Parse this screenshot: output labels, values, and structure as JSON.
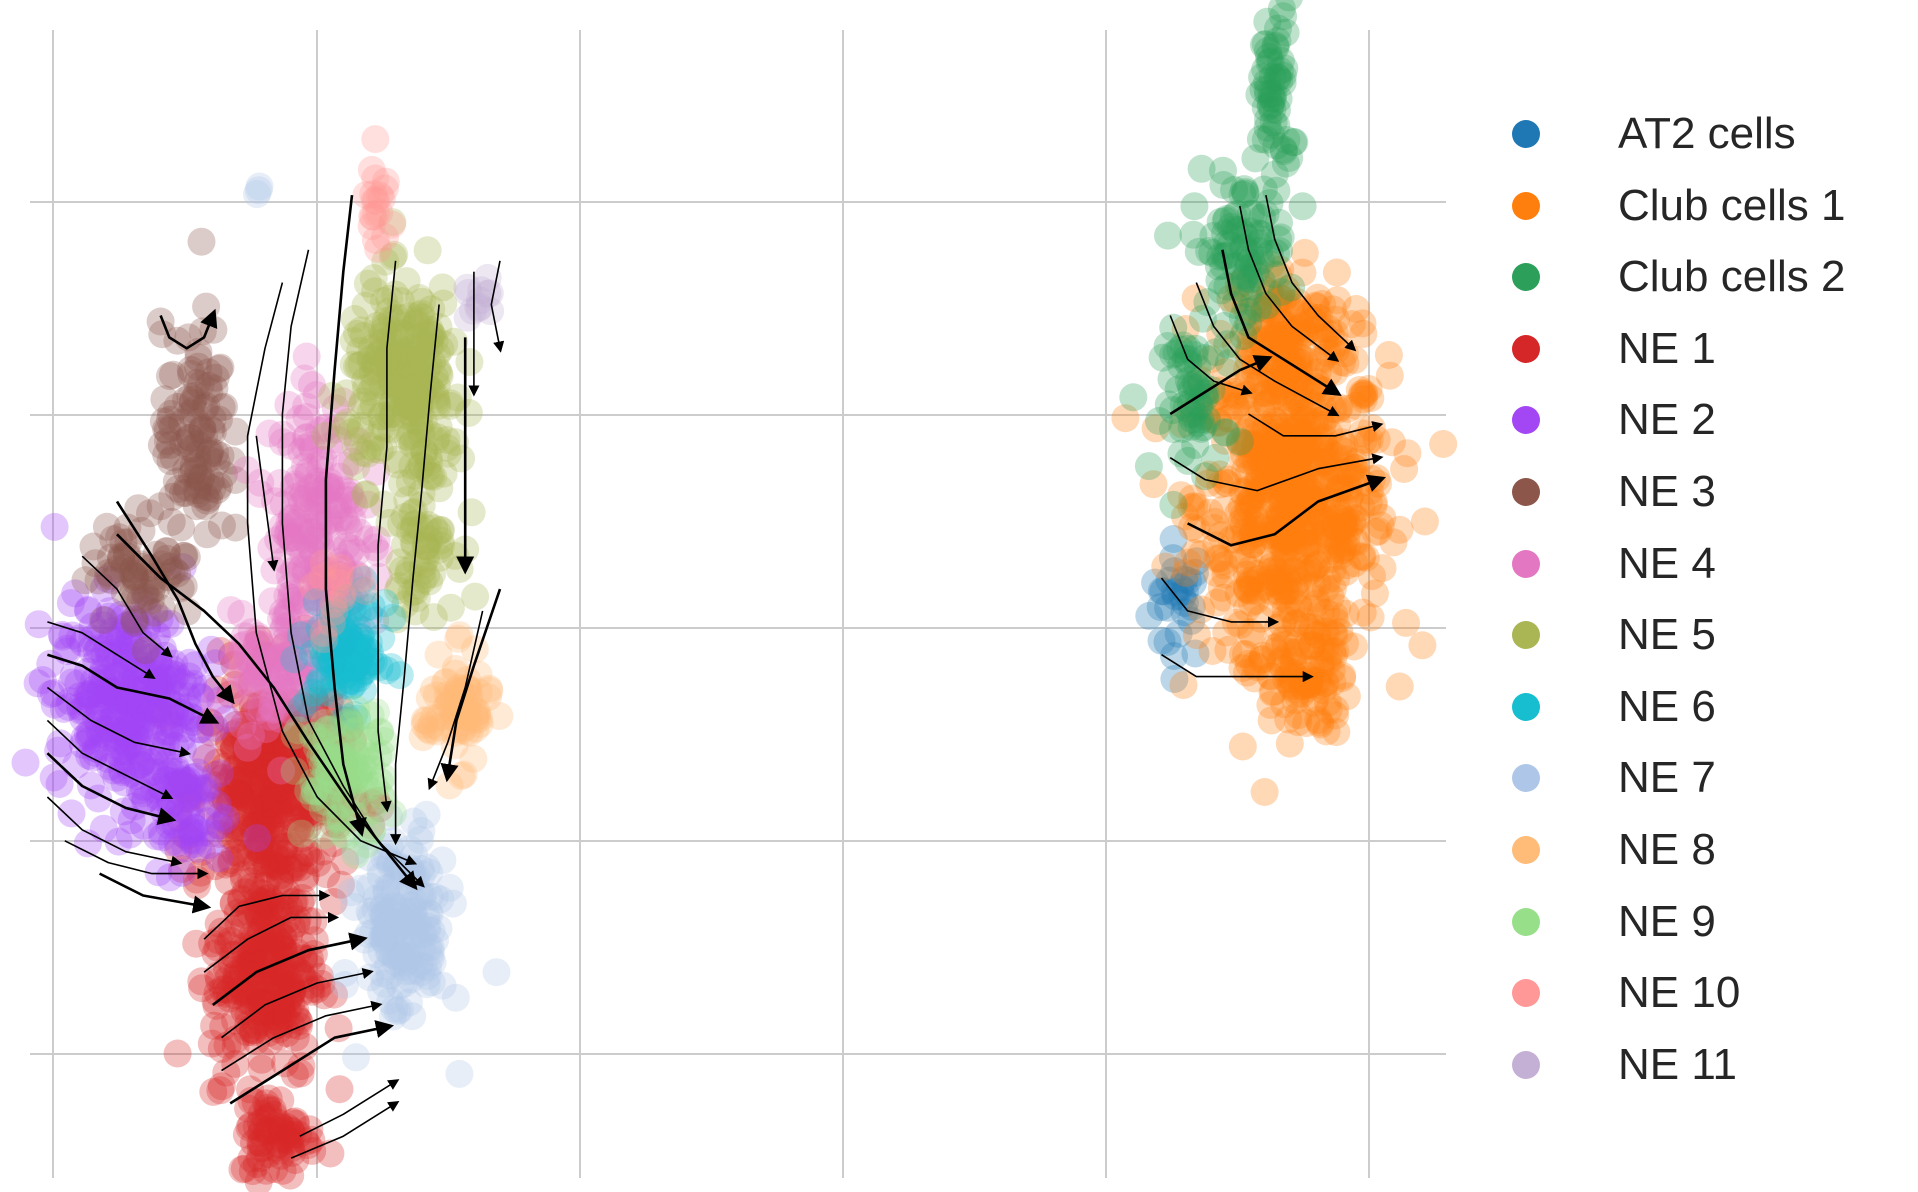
{
  "chart_data": {
    "type": "scatter",
    "title": "",
    "xlabel": "",
    "ylabel": "",
    "grid": true,
    "legend_placement": "right",
    "background": "#ffffff",
    "grid_color": "#cccccc",
    "xlim": [
      0,
      16.2
    ],
    "ylim": [
      0,
      10.6
    ],
    "series": [
      {
        "name": "AT2 cells",
        "color": "#1f77b4",
        "clusters": [
          {
            "cx": 13.2,
            "cy": 5.3,
            "rx": 0.3,
            "ry": 0.5,
            "n": 30
          }
        ]
      },
      {
        "name": "Club cells 1",
        "color": "#ff7f0e",
        "clusters": [
          {
            "cx": 14.5,
            "cy": 6.2,
            "rx": 1.0,
            "ry": 1.2,
            "n": 600
          },
          {
            "cx": 14.4,
            "cy": 7.7,
            "rx": 0.7,
            "ry": 0.6,
            "n": 150
          },
          {
            "cx": 14.6,
            "cy": 4.6,
            "rx": 0.5,
            "ry": 0.5,
            "n": 100
          }
        ]
      },
      {
        "name": "Club cells 2",
        "color": "#2ca05a",
        "clusters": [
          {
            "cx": 14.3,
            "cy": 9.9,
            "rx": 0.18,
            "ry": 0.8,
            "n": 60
          },
          {
            "cx": 13.9,
            "cy": 8.5,
            "rx": 0.5,
            "ry": 0.6,
            "n": 90
          },
          {
            "cx": 13.4,
            "cy": 7.1,
            "rx": 0.35,
            "ry": 0.6,
            "n": 60
          }
        ]
      },
      {
        "name": "NE 1",
        "color": "#d62728",
        "clusters": [
          {
            "cx": 2.8,
            "cy": 3.6,
            "rx": 0.75,
            "ry": 0.9,
            "n": 420
          },
          {
            "cx": 2.7,
            "cy": 1.9,
            "rx": 0.55,
            "ry": 0.9,
            "n": 280
          },
          {
            "cx": 2.85,
            "cy": 0.4,
            "rx": 0.4,
            "ry": 0.35,
            "n": 70
          }
        ]
      },
      {
        "name": "NE 2",
        "color": "#a346f4",
        "clusters": [
          {
            "cx": 1.1,
            "cy": 4.4,
            "rx": 0.75,
            "ry": 0.8,
            "n": 330
          },
          {
            "cx": 1.7,
            "cy": 3.4,
            "rx": 0.5,
            "ry": 0.5,
            "n": 80
          }
        ]
      },
      {
        "name": "NE 3",
        "color": "#8c564b",
        "clusters": [
          {
            "cx": 1.9,
            "cy": 6.8,
            "rx": 0.35,
            "ry": 0.9,
            "n": 110
          },
          {
            "cx": 1.3,
            "cy": 5.6,
            "rx": 0.55,
            "ry": 0.45,
            "n": 70
          }
        ]
      },
      {
        "name": "NE 4",
        "color": "#e377c2",
        "clusters": [
          {
            "cx": 3.3,
            "cy": 5.9,
            "rx": 0.5,
            "ry": 1.2,
            "n": 220
          },
          {
            "cx": 2.75,
            "cy": 4.6,
            "rx": 0.4,
            "ry": 0.5,
            "n": 80
          }
        ]
      },
      {
        "name": "NE 5",
        "color": "#aab554",
        "clusters": [
          {
            "cx": 4.3,
            "cy": 7.3,
            "rx": 0.6,
            "ry": 0.8,
            "n": 250
          },
          {
            "cx": 4.5,
            "cy": 5.9,
            "rx": 0.35,
            "ry": 0.6,
            "n": 70
          }
        ]
      },
      {
        "name": "NE 6",
        "color": "#17becf",
        "clusters": [
          {
            "cx": 3.65,
            "cy": 4.8,
            "rx": 0.4,
            "ry": 0.45,
            "n": 110
          }
        ]
      },
      {
        "name": "NE 7",
        "color": "#aec7e8",
        "clusters": [
          {
            "cx": 4.3,
            "cy": 2.3,
            "rx": 0.45,
            "ry": 0.8,
            "n": 170
          },
          {
            "cx": 2.6,
            "cy": 9.05,
            "rx": 0.05,
            "ry": 0.07,
            "n": 3
          }
        ]
      },
      {
        "name": "NE 8",
        "color": "#ffbb78",
        "clusters": [
          {
            "cx": 4.9,
            "cy": 4.3,
            "rx": 0.35,
            "ry": 0.45,
            "n": 80
          }
        ]
      },
      {
        "name": "NE 9",
        "color": "#98df8a",
        "clusters": [
          {
            "cx": 3.6,
            "cy": 3.7,
            "rx": 0.45,
            "ry": 0.55,
            "n": 110
          }
        ]
      },
      {
        "name": "NE 10",
        "color": "#ff9896",
        "clusters": [
          {
            "cx": 4.0,
            "cy": 8.9,
            "rx": 0.12,
            "ry": 0.45,
            "n": 20
          },
          {
            "cx": 3.5,
            "cy": 5.3,
            "rx": 0.25,
            "ry": 0.3,
            "n": 15
          }
        ]
      },
      {
        "name": "NE 11",
        "color": "#c5b0d5",
        "clusters": [
          {
            "cx": 5.2,
            "cy": 8.0,
            "rx": 0.15,
            "ry": 0.2,
            "n": 12
          }
        ]
      }
    ],
    "streamlines": [
      [
        [
          1.0,
          6.2
        ],
        [
          1.4,
          5.7
        ],
        [
          1.7,
          5.3
        ],
        [
          1.9,
          4.9
        ],
        [
          2.1,
          4.6
        ],
        [
          2.3,
          4.4
        ]
      ],
      [
        [
          0.6,
          5.7
        ],
        [
          1.0,
          5.4
        ],
        [
          1.3,
          5.0
        ],
        [
          1.6,
          4.8
        ]
      ],
      [
        [
          0.2,
          5.1
        ],
        [
          0.6,
          5.0
        ],
        [
          1.0,
          4.8
        ],
        [
          1.4,
          4.6
        ]
      ],
      [
        [
          0.2,
          4.8
        ],
        [
          0.6,
          4.7
        ],
        [
          1.0,
          4.5
        ],
        [
          1.6,
          4.4
        ],
        [
          2.1,
          4.2
        ]
      ],
      [
        [
          0.2,
          4.5
        ],
        [
          0.7,
          4.2
        ],
        [
          1.2,
          4.0
        ],
        [
          1.8,
          3.9
        ]
      ],
      [
        [
          0.2,
          4.2
        ],
        [
          0.6,
          3.9
        ],
        [
          1.1,
          3.7
        ],
        [
          1.6,
          3.5
        ]
      ],
      [
        [
          0.2,
          3.9
        ],
        [
          0.6,
          3.6
        ],
        [
          1.1,
          3.4
        ],
        [
          1.6,
          3.3
        ]
      ],
      [
        [
          0.2,
          3.5
        ],
        [
          0.6,
          3.2
        ],
        [
          1.1,
          3.0
        ],
        [
          1.7,
          2.9
        ]
      ],
      [
        [
          0.4,
          3.1
        ],
        [
          0.9,
          2.9
        ],
        [
          1.4,
          2.8
        ],
        [
          2.0,
          2.8
        ]
      ],
      [
        [
          0.8,
          2.8
        ],
        [
          1.3,
          2.6
        ],
        [
          2.0,
          2.5
        ]
      ],
      [
        [
          2.0,
          2.2
        ],
        [
          2.4,
          2.5
        ],
        [
          2.9,
          2.6
        ],
        [
          3.4,
          2.6
        ]
      ],
      [
        [
          2.0,
          1.9
        ],
        [
          2.5,
          2.2
        ],
        [
          3.0,
          2.4
        ],
        [
          3.5,
          2.4
        ]
      ],
      [
        [
          2.1,
          1.6
        ],
        [
          2.6,
          1.9
        ],
        [
          3.2,
          2.1
        ],
        [
          3.8,
          2.2
        ]
      ],
      [
        [
          2.2,
          1.3
        ],
        [
          2.7,
          1.6
        ],
        [
          3.3,
          1.8
        ],
        [
          3.9,
          1.9
        ]
      ],
      [
        [
          2.2,
          1.0
        ],
        [
          2.8,
          1.3
        ],
        [
          3.4,
          1.5
        ],
        [
          4.0,
          1.6
        ]
      ],
      [
        [
          2.3,
          0.7
        ],
        [
          2.9,
          1.0
        ],
        [
          3.5,
          1.3
        ],
        [
          4.1,
          1.4
        ]
      ],
      [
        [
          3.1,
          0.4
        ],
        [
          3.6,
          0.6
        ],
        [
          4.2,
          0.9
        ]
      ],
      [
        [
          3.0,
          0.2
        ],
        [
          3.6,
          0.4
        ],
        [
          4.2,
          0.7
        ]
      ],
      [
        [
          1.5,
          7.9
        ],
        [
          1.6,
          7.7
        ],
        [
          1.8,
          7.6
        ],
        [
          2.0,
          7.7
        ],
        [
          2.1,
          7.9
        ]
      ],
      [
        [
          2.9,
          8.2
        ],
        [
          2.7,
          7.6
        ],
        [
          2.5,
          6.8
        ],
        [
          2.5,
          6.0
        ],
        [
          2.6,
          5.0
        ],
        [
          2.9,
          4.1
        ],
        [
          3.3,
          3.5
        ],
        [
          3.8,
          3.1
        ],
        [
          4.4,
          2.9
        ]
      ],
      [
        [
          3.2,
          8.5
        ],
        [
          3.0,
          7.8
        ],
        [
          2.9,
          7.0
        ],
        [
          2.9,
          6.0
        ],
        [
          3.0,
          5.0
        ],
        [
          3.2,
          4.2
        ],
        [
          3.6,
          3.6
        ],
        [
          4.0,
          3.1
        ],
        [
          4.5,
          2.7
        ]
      ],
      [
        [
          3.7,
          9.0
        ],
        [
          3.6,
          8.3
        ],
        [
          3.5,
          7.4
        ],
        [
          3.4,
          6.4
        ],
        [
          3.4,
          5.4
        ],
        [
          3.5,
          4.5
        ],
        [
          3.6,
          3.8
        ],
        [
          3.8,
          3.2
        ]
      ],
      [
        [
          4.2,
          8.4
        ],
        [
          4.1,
          7.6
        ],
        [
          4.1,
          6.7
        ],
        [
          4.0,
          5.8
        ],
        [
          4.0,
          4.9
        ],
        [
          4.0,
          4.1
        ],
        [
          4.1,
          3.4
        ]
      ],
      [
        [
          4.7,
          8.0
        ],
        [
          4.6,
          7.2
        ],
        [
          4.5,
          6.3
        ],
        [
          4.4,
          5.5
        ],
        [
          4.3,
          4.6
        ],
        [
          4.2,
          3.8
        ],
        [
          4.2,
          3.1
        ]
      ],
      [
        [
          5.0,
          7.7
        ],
        [
          5.0,
          7.0
        ],
        [
          5.0,
          6.3
        ],
        [
          5.0,
          5.6
        ]
      ],
      [
        [
          5.1,
          8.3
        ],
        [
          5.1,
          7.8
        ],
        [
          5.1,
          7.2
        ]
      ],
      [
        [
          5.4,
          8.4
        ],
        [
          5.3,
          8.0
        ],
        [
          5.4,
          7.6
        ]
      ],
      [
        [
          5.4,
          5.4
        ],
        [
          5.1,
          4.7
        ],
        [
          4.9,
          4.2
        ],
        [
          4.8,
          3.7
        ]
      ],
      [
        [
          5.2,
          5.2
        ],
        [
          5.0,
          4.5
        ],
        [
          4.8,
          4.0
        ],
        [
          4.6,
          3.6
        ]
      ],
      [
        [
          2.6,
          6.8
        ],
        [
          2.7,
          6.2
        ],
        [
          2.8,
          5.6
        ]
      ],
      [
        [
          1.0,
          5.9
        ],
        [
          1.5,
          5.5
        ],
        [
          2.0,
          5.2
        ],
        [
          2.4,
          4.9
        ],
        [
          2.8,
          4.5
        ],
        [
          3.2,
          4.0
        ],
        [
          3.8,
          3.3
        ],
        [
          4.4,
          2.7
        ]
      ],
      [
        [
          14.2,
          9.0
        ],
        [
          14.3,
          8.6
        ],
        [
          14.5,
          8.2
        ],
        [
          14.8,
          7.9
        ],
        [
          15.2,
          7.6
        ]
      ],
      [
        [
          13.9,
          8.9
        ],
        [
          14.0,
          8.5
        ],
        [
          14.2,
          8.1
        ],
        [
          14.5,
          7.8
        ],
        [
          15.0,
          7.5
        ]
      ],
      [
        [
          13.7,
          8.5
        ],
        [
          13.8,
          8.1
        ],
        [
          14.0,
          7.7
        ],
        [
          14.4,
          7.5
        ],
        [
          15.0,
          7.2
        ]
      ],
      [
        [
          13.4,
          8.2
        ],
        [
          13.6,
          7.8
        ],
        [
          13.9,
          7.5
        ],
        [
          14.3,
          7.3
        ],
        [
          15.0,
          7.0
        ]
      ],
      [
        [
          13.1,
          7.9
        ],
        [
          13.3,
          7.5
        ],
        [
          13.6,
          7.3
        ],
        [
          14.0,
          7.2
        ]
      ],
      [
        [
          13.1,
          7.0
        ],
        [
          13.5,
          7.2
        ],
        [
          13.9,
          7.4
        ],
        [
          14.2,
          7.5
        ]
      ],
      [
        [
          14.0,
          7.0
        ],
        [
          14.4,
          6.8
        ],
        [
          15.0,
          6.8
        ],
        [
          15.5,
          6.9
        ]
      ],
      [
        [
          13.1,
          6.6
        ],
        [
          13.5,
          6.4
        ],
        [
          14.1,
          6.3
        ],
        [
          14.8,
          6.5
        ],
        [
          15.5,
          6.6
        ]
      ],
      [
        [
          13.3,
          6.0
        ],
        [
          13.8,
          5.8
        ],
        [
          14.3,
          5.9
        ],
        [
          14.8,
          6.2
        ],
        [
          15.5,
          6.4
        ]
      ],
      [
        [
          13.0,
          5.5
        ],
        [
          13.3,
          5.2
        ],
        [
          13.8,
          5.1
        ],
        [
          14.3,
          5.1
        ]
      ],
      [
        [
          13.0,
          4.8
        ],
        [
          13.4,
          4.6
        ],
        [
          14.0,
          4.6
        ],
        [
          14.7,
          4.6
        ]
      ]
    ]
  },
  "legend": {
    "items": [
      {
        "label": "AT2 cells",
        "color": "#1f77b4"
      },
      {
        "label": "Club cells 1",
        "color": "#ff7f0e"
      },
      {
        "label": "Club cells 2",
        "color": "#2ca05a"
      },
      {
        "label": "NE 1",
        "color": "#d62728"
      },
      {
        "label": "NE 2",
        "color": "#a346f4"
      },
      {
        "label": "NE 3",
        "color": "#8c564b"
      },
      {
        "label": "NE 4",
        "color": "#e377c2"
      },
      {
        "label": "NE 5",
        "color": "#aab554"
      },
      {
        "label": "NE 6",
        "color": "#17becf"
      },
      {
        "label": "NE 7",
        "color": "#aec7e8"
      },
      {
        "label": "NE 8",
        "color": "#ffbb78"
      },
      {
        "label": "NE 9",
        "color": "#98df8a"
      },
      {
        "label": "NE 10",
        "color": "#ff9896"
      },
      {
        "label": "NE 11",
        "color": "#c5b0d5"
      }
    ]
  }
}
